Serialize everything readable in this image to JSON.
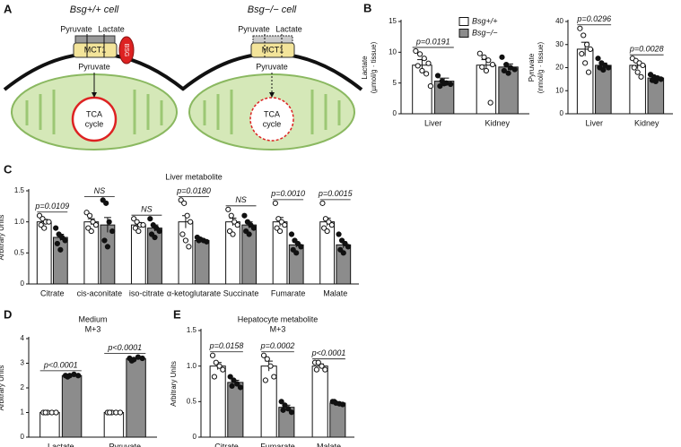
{
  "diagram": {
    "panel": "A",
    "cells": [
      {
        "title": "Bsg+/+ cell",
        "pyruvate_in": "Pyruvate",
        "lactate": "Lactate",
        "transporter": "MCT1",
        "partner": "BSG",
        "pyruvate_out": "Pyruvate",
        "cycle": [
          "TCA",
          "cycle"
        ]
      },
      {
        "title": "Bsg−/− cell",
        "pyruvate_in": "Pyruvate",
        "lactate": "Lactate",
        "transporter": "MCT1",
        "pyruvate_out": "Pyruvate",
        "cycle": [
          "TCA",
          "cycle"
        ]
      }
    ]
  },
  "chart_data": [
    {
      "panel": "B",
      "type": "bar",
      "ylabel": [
        "Lactate",
        "(µmol/g · tissue)"
      ],
      "legend": "upper right",
      "categories": [
        "Liver",
        "Kidney"
      ],
      "ylim": [
        0,
        15
      ],
      "yticks": [
        0,
        5,
        10,
        15
      ],
      "annotations": [
        "p=0.0191",
        null
      ],
      "series": [
        {
          "name": "Bsg+/+",
          "color": "#ffffff",
          "values": [
            7.9,
            7.9
          ],
          "errors": [
            0.9,
            0.9
          ],
          "points": [
            [
              10.2,
              9.7,
              9.0,
              8.2,
              7.8,
              7.0,
              6.5,
              4.5
            ],
            [
              9.8,
              9.2,
              8.7,
              8.0,
              7.6,
              7.0,
              1.8
            ]
          ]
        },
        {
          "name": "Bsg−/−",
          "color": "#8c8c8c",
          "values": [
            5.3,
            7.6
          ],
          "errors": [
            0.5,
            0.5
          ],
          "points": [
            [
              6.2,
              5.3,
              5.0,
              4.8,
              4.5,
              4.9
            ],
            [
              9.2,
              8.0,
              7.5,
              7.2,
              7.0,
              6.6
            ]
          ]
        }
      ]
    },
    {
      "type": "bar",
      "ylabel": [
        "Pyruvate",
        "(nmol/g · tissue)"
      ],
      "categories": [
        "Liver",
        "Kidney"
      ],
      "ylim": [
        0,
        40
      ],
      "yticks": [
        0,
        10,
        20,
        30,
        40
      ],
      "annotations": [
        "p=0.0296",
        "p=0.0028"
      ],
      "series": [
        {
          "color": "#ffffff",
          "values": [
            28,
            21
          ],
          "errors": [
            3,
            1.5
          ],
          "points": [
            [
              37,
              34,
              30,
              28,
              26,
              22,
              18
            ],
            [
              24,
              23,
              22,
              21,
              20,
              18,
              16
            ]
          ]
        },
        {
          "color": "#8c8c8c",
          "values": [
            21,
            15.5
          ],
          "errors": [
            1,
            0.7
          ],
          "points": [
            [
              24,
              22,
              21,
              20,
              20,
              19
            ],
            [
              17,
              16,
              15.5,
              15,
              14.5,
              14
            ]
          ]
        }
      ]
    },
    {
      "panel": "C",
      "type": "bar",
      "title": [
        "Liver metabolite"
      ],
      "ylabel": [
        "Arbitrary Units"
      ],
      "categories": [
        "Citrate",
        "cis-aconitate",
        "iso-citrate",
        "α-ketoglutarate",
        "Succinate",
        "Fumarate",
        "Malate"
      ],
      "ylim": [
        0,
        1.5
      ],
      "yticks": [
        0,
        0.5,
        {
          "value": 1,
          "label": "1.0"
        },
        1.5
      ],
      "annotations": [
        "p=0.0109",
        "NS",
        "NS",
        "p=0.0180",
        "NS",
        "p=0.0010",
        "p=0.0015"
      ],
      "series": [
        {
          "color": "#ffffff",
          "values": [
            1.0,
            1.0,
            0.95,
            1.0,
            1.0,
            1.0,
            1.0
          ],
          "errors": [
            0.04,
            0.05,
            0.04,
            0.1,
            0.06,
            0.07,
            0.06
          ],
          "points": [
            [
              1.1,
              1.05,
              1.0,
              1.0,
              0.95,
              0.9
            ],
            [
              1.15,
              1.1,
              1.0,
              0.95,
              0.9,
              0.85
            ],
            [
              1.05,
              1.0,
              0.95,
              0.95,
              0.9,
              0.85
            ],
            [
              1.35,
              1.3,
              1.1,
              1.0,
              0.8,
              0.7,
              0.6
            ],
            [
              1.2,
              1.1,
              1.0,
              0.95,
              0.85,
              0.8
            ],
            [
              1.3,
              1.05,
              1.0,
              0.95,
              0.9,
              0.85
            ],
            [
              1.3,
              1.05,
              1.0,
              0.95,
              0.9,
              0.85
            ]
          ]
        },
        {
          "color": "#8c8c8c",
          "values": [
            0.75,
            0.95,
            0.9,
            0.7,
            0.95,
            0.63,
            0.63
          ],
          "errors": [
            0.05,
            0.12,
            0.05,
            0.02,
            0.05,
            0.04,
            0.05
          ],
          "points": [
            [
              0.9,
              0.8,
              0.75,
              0.7,
              0.65,
              0.55
            ],
            [
              1.35,
              1.3,
              1.0,
              0.85,
              0.7,
              0.6
            ],
            [
              1.05,
              0.95,
              0.9,
              0.85,
              0.8,
              0.75
            ],
            [
              0.75,
              0.72,
              0.7,
              0.68,
              0.7
            ],
            [
              1.1,
              1.0,
              0.95,
              0.9,
              0.85,
              0.8
            ],
            [
              0.8,
              0.7,
              0.65,
              0.6,
              0.55,
              0.5
            ],
            [
              0.8,
              0.7,
              0.65,
              0.6,
              0.55,
              0.5
            ]
          ]
        }
      ]
    },
    {
      "panel": "D",
      "type": "bar",
      "title": [
        "Medium",
        "M+3"
      ],
      "ylabel": [
        "Arbitrary Units"
      ],
      "categories": [
        "Lactate",
        "Pyruvate"
      ],
      "ylim": [
        0,
        4
      ],
      "yticks": [
        0,
        1,
        2,
        3,
        4
      ],
      "annotations": [
        "p<0.0001",
        "p<0.0001"
      ],
      "series": [
        {
          "color": "#ffffff",
          "values": [
            1.0,
            1.0
          ],
          "errors": [
            0.02,
            0.03
          ],
          "points": [
            [
              1.0,
              1.0,
              1.0,
              1.0,
              1.0
            ],
            [
              1.0,
              1.0,
              1.0,
              1.0,
              1.0
            ]
          ]
        },
        {
          "color": "#8c8c8c",
          "values": [
            2.5,
            3.18
          ],
          "errors": [
            0.02,
            0.03
          ],
          "points": [
            [
              2.5,
              2.5,
              2.55,
              2.5,
              2.45
            ],
            [
              3.2,
              3.15,
              3.25,
              3.2,
              3.1
            ]
          ]
        }
      ]
    },
    {
      "panel": "E",
      "type": "bar",
      "title": [
        "Hepatocyte metabolite",
        "M+3"
      ],
      "ylabel": [
        "Arbitrary Units"
      ],
      "categories": [
        "Citrate",
        "Fumarate",
        "Malate"
      ],
      "ylim": [
        0,
        1.5
      ],
      "yticks": [
        0,
        0.5,
        {
          "value": 1,
          "label": "1.0"
        },
        1.5
      ],
      "annotations": [
        "p=0.0158",
        "p=0.0002",
        "p<0.0001"
      ],
      "series": [
        {
          "color": "#ffffff",
          "values": [
            1.0,
            1.0,
            1.0
          ],
          "errors": [
            0.05,
            0.07,
            0.03
          ],
          "points": [
            [
              1.15,
              1.05,
              1.0,
              0.95,
              0.85
            ],
            [
              1.15,
              1.1,
              1.0,
              0.85,
              0.8
            ],
            [
              1.05,
              1.05,
              1.0,
              0.95,
              0.95
            ]
          ]
        },
        {
          "color": "#8c8c8c",
          "values": [
            0.77,
            0.42,
            0.48
          ],
          "errors": [
            0.03,
            0.03,
            0.01
          ],
          "points": [
            [
              0.85,
              0.8,
              0.75,
              0.7,
              0.72
            ],
            [
              0.5,
              0.45,
              0.4,
              0.35,
              0.38
            ],
            [
              0.5,
              0.48,
              0.47,
              0.46,
              0.5
            ]
          ]
        }
      ]
    }
  ]
}
